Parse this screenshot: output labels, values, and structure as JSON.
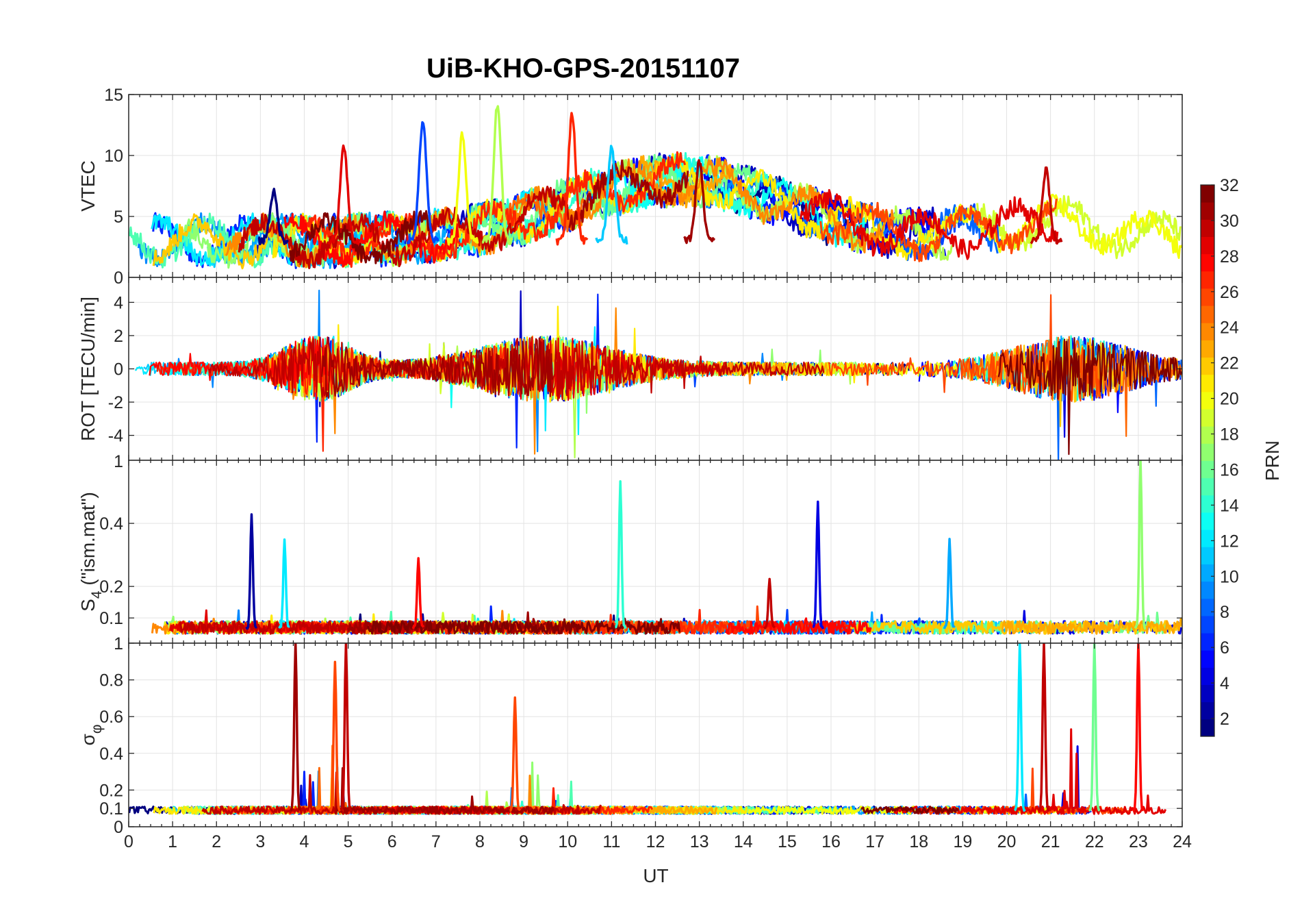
{
  "chart_data": {
    "type": "line",
    "title": "UiB-KHO-GPS-20151107",
    "xlabel": "UT",
    "xlim": [
      0,
      24
    ],
    "x_ticks": [
      "0",
      "1",
      "2",
      "3",
      "4",
      "5",
      "6",
      "7",
      "8",
      "9",
      "10",
      "11",
      "12",
      "13",
      "14",
      "15",
      "16",
      "17",
      "18",
      "19",
      "20",
      "21",
      "22",
      "23",
      "24"
    ],
    "grid": true,
    "colorbar": {
      "label": "PRN",
      "range": [
        1,
        32
      ],
      "colormap": "jet",
      "ticks": [
        "2",
        "4",
        "6",
        "8",
        "10",
        "12",
        "14",
        "16",
        "18",
        "20",
        "22",
        "24",
        "26",
        "28",
        "30",
        "32"
      ],
      "colors": [
        "#00008f",
        "#0000ff",
        "#0080ff",
        "#00ffff",
        "#80ff80",
        "#ffff00",
        "#ff8000",
        "#ff0000",
        "#800000"
      ]
    },
    "panels": [
      {
        "ylabel": "VTEC",
        "ylim": [
          0,
          15
        ],
        "y_ticks": [
          "0",
          "5",
          "10",
          "15"
        ],
        "kind": "vtec",
        "peaks": [
          {
            "prn": 1,
            "x": 3.3,
            "y": 7.0
          },
          {
            "prn": 7,
            "x": 6.7,
            "y": 12.8
          },
          {
            "prn": 20,
            "x": 7.6,
            "y": 11.8
          },
          {
            "prn": 18,
            "x": 8.4,
            "y": 14.2
          },
          {
            "prn": 27,
            "x": 10.1,
            "y": 13.5
          },
          {
            "prn": 29,
            "x": 4.9,
            "y": 10.8
          },
          {
            "prn": 11,
            "x": 11.0,
            "y": 10.8
          },
          {
            "prn": 31,
            "x": 13.0,
            "y": 9.5
          },
          {
            "prn": 30,
            "x": 20.9,
            "y": 8.8
          }
        ]
      },
      {
        "ylabel": "ROT [TECU/min]",
        "ylim": [
          -5.5,
          5.5
        ],
        "y_ticks": [
          "-4",
          "-2",
          "0",
          "2",
          "4"
        ],
        "kind": "rot"
      },
      {
        "ylabel": "S",
        "ylabel_sub": "4",
        "ylabel_suffix": " (\"ism.mat\")",
        "ylim": [
          0.02,
          0.6
        ],
        "y_ticks": [
          "0.1",
          "0.2",
          "0.4"
        ],
        "y_tick_extra": "1",
        "kind": "s4",
        "spikes": [
          {
            "prn": 2,
            "x": 2.8,
            "y": 0.43
          },
          {
            "prn": 12,
            "x": 3.55,
            "y": 0.35
          },
          {
            "prn": 28,
            "x": 6.6,
            "y": 0.29
          },
          {
            "prn": 14,
            "x": 11.2,
            "y": 0.53
          },
          {
            "prn": 30,
            "x": 14.6,
            "y": 0.22
          },
          {
            "prn": 4,
            "x": 15.7,
            "y": 0.47
          },
          {
            "prn": 10,
            "x": 18.7,
            "y": 0.35
          },
          {
            "prn": 17,
            "x": 23.05,
            "y": 0.6
          }
        ]
      },
      {
        "ylabel": "σ",
        "ylabel_sub": "φ",
        "ylim": [
          0,
          1.0
        ],
        "y_ticks": [
          "0",
          "0.1",
          "0.2",
          "0.4",
          "0.6",
          "0.8",
          "1"
        ],
        "kind": "sigma",
        "spikes": [
          {
            "prn": 31,
            "x": 3.8,
            "y": 1.0
          },
          {
            "prn": 26,
            "x": 4.7,
            "y": 0.9
          },
          {
            "prn": 30,
            "x": 4.95,
            "y": 1.0
          },
          {
            "prn": 26,
            "x": 8.8,
            "y": 0.7
          },
          {
            "prn": 12,
            "x": 20.3,
            "y": 1.0
          },
          {
            "prn": 30,
            "x": 20.85,
            "y": 1.0
          },
          {
            "prn": 16,
            "x": 22.0,
            "y": 1.0
          },
          {
            "prn": 28,
            "x": 23.0,
            "y": 1.0
          }
        ]
      }
    ]
  }
}
